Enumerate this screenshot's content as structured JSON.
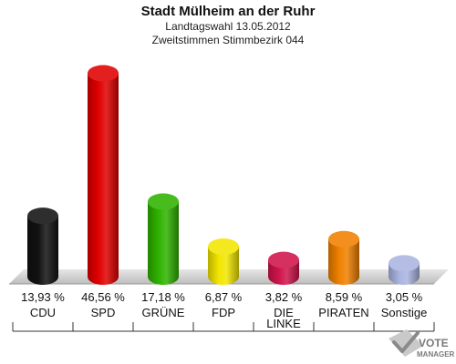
{
  "chart_data": {
    "type": "bar",
    "title": "Stadt Mülheim an der Ruhr",
    "subtitle_lines": [
      "Landtagswahl 13.05.2012",
      "Zweitstimmen Stimmbezirk 044"
    ],
    "categories": [
      "CDU",
      "SPD",
      "GRÜNE",
      "FDP",
      "DIE LINKE",
      "PIRATEN",
      "Sonstige"
    ],
    "category_lines": [
      [
        "CDU"
      ],
      [
        "SPD"
      ],
      [
        "GRÜNE"
      ],
      [
        "FDP"
      ],
      [
        "DIE",
        "LINKE"
      ],
      [
        "PIRATEN"
      ],
      [
        "Sonstige"
      ]
    ],
    "values": [
      13.93,
      46.56,
      17.18,
      6.87,
      3.82,
      8.59,
      3.05
    ],
    "value_labels": [
      "13,93 %",
      "46,56 %",
      "17,18 %",
      "6,87 %",
      "3,82 %",
      "8,59 %",
      "3,05 %"
    ],
    "colors": [
      "#111111",
      "#e00000",
      "#2fb200",
      "#f2e600",
      "#d0144a",
      "#f08000",
      "#aab4e0"
    ],
    "unit": "%",
    "ylim": [
      0,
      50
    ],
    "grid": false
  },
  "logo": {
    "line1": "VOTE",
    "line2": "MANAGER"
  }
}
